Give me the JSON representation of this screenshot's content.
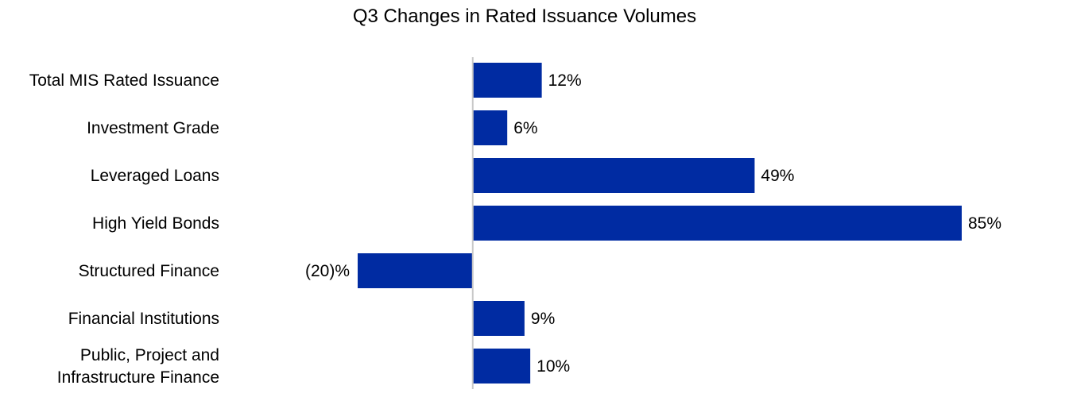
{
  "chart_data": {
    "type": "bar",
    "orientation": "horizontal",
    "title": "Q3 Changes in Rated Issuance Volumes",
    "categories": [
      [
        "Total MIS Rated Issuance"
      ],
      [
        "Investment Grade"
      ],
      [
        "Leveraged Loans"
      ],
      [
        "High Yield Bonds"
      ],
      [
        "Structured Finance"
      ],
      [
        "Financial Institutions"
      ],
      [
        "Public, Project and",
        "Infrastructure Finance"
      ]
    ],
    "values": [
      12,
      6,
      49,
      85,
      -20,
      9,
      10
    ],
    "value_labels": [
      "12%",
      "6%",
      "49%",
      "85%",
      "(20)%",
      "9%",
      "10%"
    ],
    "unit": "%",
    "xlim": [
      -20,
      85
    ],
    "grid": false,
    "legend": "none",
    "bar_color": "#002BA2",
    "axis_color": "#C8C8C8"
  }
}
